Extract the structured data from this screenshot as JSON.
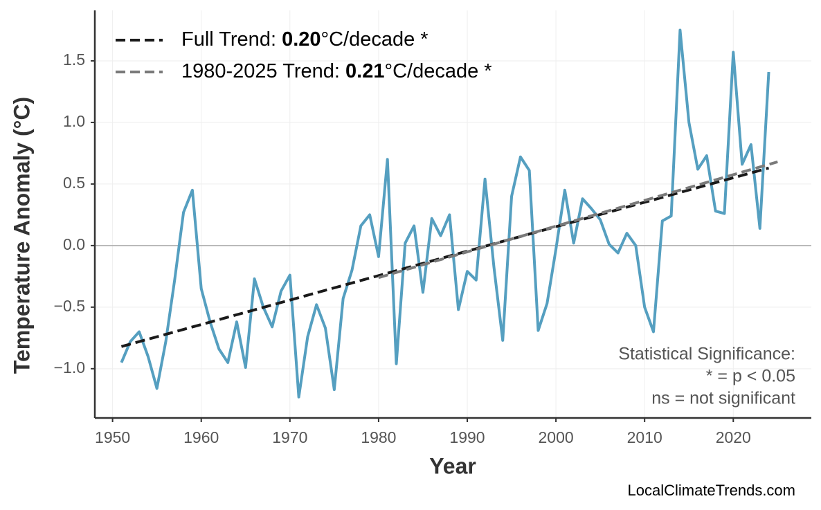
{
  "chart_data": {
    "type": "line",
    "xlabel": "Year",
    "ylabel": "Temperature Anomaly (°C)",
    "x": [
      1951,
      1952,
      1953,
      1954,
      1955,
      1956,
      1957,
      1958,
      1959,
      1960,
      1961,
      1962,
      1963,
      1964,
      1965,
      1966,
      1967,
      1968,
      1969,
      1970,
      1971,
      1972,
      1973,
      1974,
      1975,
      1976,
      1977,
      1978,
      1979,
      1980,
      1981,
      1982,
      1983,
      1984,
      1985,
      1986,
      1987,
      1988,
      1989,
      1990,
      1991,
      1992,
      1993,
      1994,
      1995,
      1996,
      1997,
      1998,
      1999,
      2000,
      2001,
      2002,
      2003,
      2004,
      2005,
      2006,
      2007,
      2008,
      2009,
      2010,
      2011,
      2012,
      2013,
      2014,
      2015,
      2016,
      2017,
      2018,
      2019,
      2020,
      2021,
      2022,
      2023,
      2024
    ],
    "series": [
      {
        "color": "#559fc0",
        "values": [
          -0.95,
          -0.78,
          -0.7,
          -0.9,
          -1.16,
          -0.78,
          -0.28,
          0.27,
          0.45,
          -0.35,
          -0.62,
          -0.84,
          -0.95,
          -0.62,
          -0.99,
          -0.27,
          -0.5,
          -0.66,
          -0.37,
          -0.24,
          -1.23,
          -0.74,
          -0.48,
          -0.67,
          -1.17,
          -0.43,
          -0.2,
          0.16,
          0.25,
          -0.09,
          0.7,
          -0.96,
          0.02,
          0.16,
          -0.38,
          0.22,
          0.08,
          0.25,
          -0.52,
          -0.21,
          -0.28,
          0.54,
          -0.17,
          -0.77,
          0.4,
          0.72,
          0.61,
          -0.69,
          -0.47,
          -0.03,
          0.45,
          0.02,
          0.38,
          0.3,
          0.21,
          0.01,
          -0.06,
          0.1,
          0.0,
          -0.5,
          -0.7,
          0.2,
          0.24,
          1.75,
          1.0,
          0.62,
          0.73,
          0.28,
          0.26,
          1.57,
          0.66,
          0.82,
          0.14,
          1.41
        ]
      },
      {
        "name": "Full Trend:",
        "slope_label": "0.20",
        "unit": "°C/decade *",
        "color": "#1a1a1a",
        "x": [
          1951,
          2024
        ],
        "values": [
          -0.82,
          0.63
        ]
      },
      {
        "name": "1980-2025 Trend:",
        "slope_label": "0.21",
        "unit": "°C/decade *",
        "color": "#7a7a7a",
        "x": [
          1980,
          2025
        ],
        "values": [
          -0.26,
          0.68
        ]
      }
    ],
    "zero_line": 0,
    "xlim": [
      1948,
      2028.8
    ],
    "ylim": [
      -1.4,
      1.91
    ],
    "xticks": [
      1950,
      1960,
      1970,
      1980,
      1990,
      2000,
      2010,
      2020
    ],
    "yticks": [
      {
        "value": -1,
        "label": "−1.0"
      },
      {
        "value": -0.5,
        "label": "−0.5"
      },
      {
        "value": 0,
        "label": "0.0"
      },
      {
        "value": 0.5,
        "label": "0.5"
      },
      {
        "value": 1,
        "label": "1.0"
      },
      {
        "value": 1.5,
        "label": "1.5"
      }
    ],
    "grid": true,
    "legend": "upper left",
    "annotation": [
      "Statistical Significance:",
      "* = p < 0.05",
      "ns = not significant"
    ],
    "source": "LocalClimateTrends.com"
  }
}
